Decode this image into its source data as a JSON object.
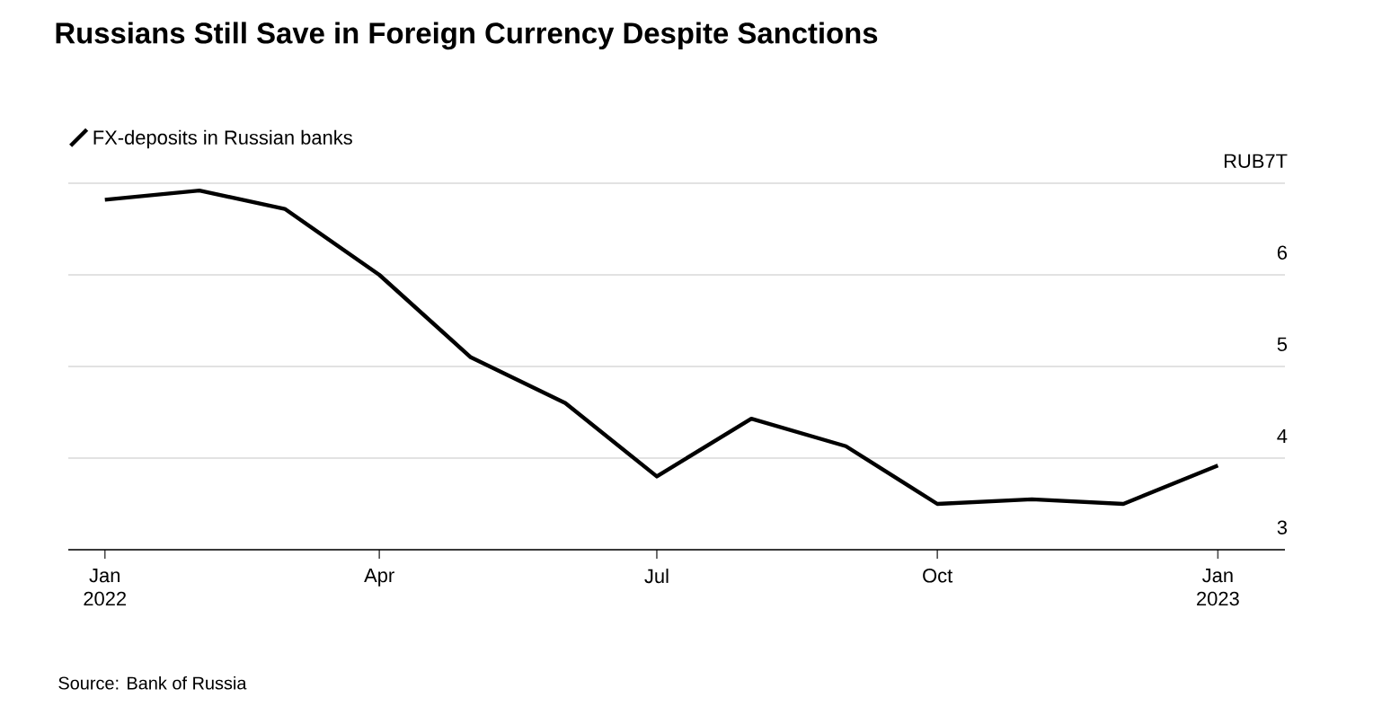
{
  "chart_data": {
    "type": "line",
    "title": "Russians Still Save in Foreign Currency Despite Sanctions",
    "x": [
      "2022-01",
      "2022-02",
      "2022-03",
      "2022-04",
      "2022-05",
      "2022-06",
      "2022-07",
      "2022-08",
      "2022-09",
      "2022-10",
      "2022-11",
      "2022-12",
      "2023-01"
    ],
    "series": [
      {
        "name": "FX-deposits in Russian banks",
        "color": "#000000",
        "values": [
          6.82,
          6.92,
          6.72,
          6.0,
          5.1,
          4.6,
          3.8,
          4.43,
          4.13,
          3.5,
          3.55,
          3.5,
          3.92
        ]
      }
    ],
    "xlim": [
      "2021-12-20",
      "2023-01-23"
    ],
    "xticks": [
      {
        "value": "2022-01",
        "label": "Jan 2022"
      },
      {
        "value": "2022-04",
        "label": "Apr"
      },
      {
        "value": "2022-07",
        "label": "Jul"
      },
      {
        "value": "2022-10",
        "label": "Oct"
      },
      {
        "value": "2023-01",
        "label": "Jan 2023"
      }
    ],
    "ylim": [
      3,
      7
    ],
    "yticks": [
      3,
      4,
      5,
      6,
      {
        "value": 7,
        "label": "RUB7T"
      }
    ],
    "grid": "y",
    "legend": "top left",
    "marker": "none",
    "line_style": "solid",
    "annotations": [
      "Source: Bank of Russia"
    ]
  }
}
